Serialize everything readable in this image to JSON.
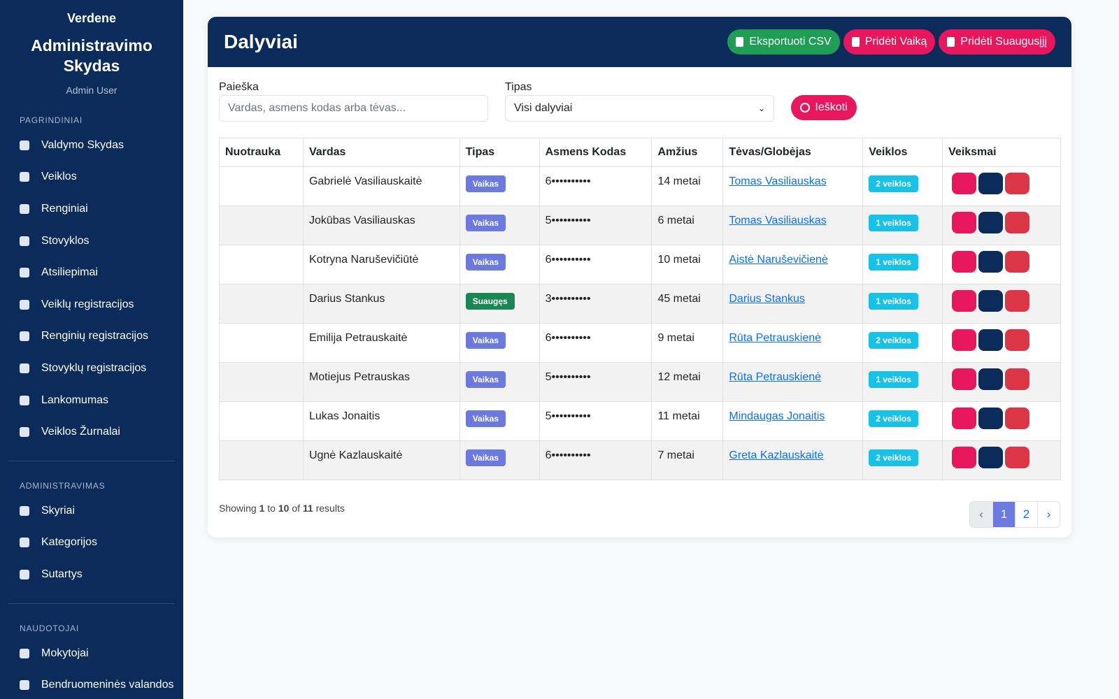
{
  "sidebar": {
    "brand": "Verdene",
    "title": "Administravimo Skydas",
    "user": "Admin User",
    "sections": [
      {
        "heading": "PAGRINDINIAI",
        "items": [
          "Valdymo Skydas",
          "Veiklos",
          "Renginiai",
          "Stovyklos",
          "Atsiliepimai",
          "Veiklų registracijos",
          "Renginių registracijos",
          "Stovyklų registracijos",
          "Lankomumas",
          "Veiklos Žurnalai"
        ]
      },
      {
        "heading": "ADMINISTRAVIMAS",
        "items": [
          "Skyriai",
          "Kategorijos",
          "Sutartys"
        ]
      },
      {
        "heading": "NAUDOTOJAI",
        "items": [
          "Mokytojai",
          "Bendruomeninės valandos"
        ]
      }
    ]
  },
  "header": {
    "title": "Dalyviai",
    "buttons": [
      "Eksportuoti CSV",
      "Pridėti Vaiką",
      "Pridėti Suaugusįjį"
    ]
  },
  "filters": {
    "search_label": "Paieška",
    "search_placeholder": "Vardas, asmens kodas arba tėvas...",
    "type_label": "Tipas",
    "type_value": "Visi dalyviai",
    "submit": "Ieškoti"
  },
  "table": {
    "columns": [
      "Nuotrauka",
      "Vardas",
      "Tipas",
      "Asmens Kodas",
      "Amžius",
      "Tėvas/Globėjas",
      "Veiklos",
      "Veiksmai"
    ],
    "rows": [
      {
        "name": "Gabrielė Vasiliauskaitė",
        "type": "Vaikas",
        "code": "6••••••••••",
        "age": "14 metai",
        "parent": "Tomas Vasiliauskas",
        "activities": "2 veiklos"
      },
      {
        "name": "Jokūbas Vasiliauskas",
        "type": "Vaikas",
        "code": "5••••••••••",
        "age": "6 metai",
        "parent": "Tomas Vasiliauskas",
        "activities": "1 veiklos"
      },
      {
        "name": "Kotryna Naruševičiūtė",
        "type": "Vaikas",
        "code": "6••••••••••",
        "age": "10 metai",
        "parent": "Aistė Naruševičienė",
        "activities": "1 veiklos"
      },
      {
        "name": "Darius Stankus",
        "type": "Suaugęs",
        "code": "3••••••••••",
        "age": "45 metai",
        "parent": "Darius Stankus",
        "activities": "1 veiklos"
      },
      {
        "name": "Emilija Petrauskaitė",
        "type": "Vaikas",
        "code": "6••••••••••",
        "age": "9 metai",
        "parent": "Rūta Petrauskienė",
        "activities": "2 veiklos"
      },
      {
        "name": "Motiejus Petrauskas",
        "type": "Vaikas",
        "code": "5••••••••••",
        "age": "12 metai",
        "parent": "Rūta Petrauskienė",
        "activities": "1 veiklos"
      },
      {
        "name": "Lukas Jonaitis",
        "type": "Vaikas",
        "code": "5••••••••••",
        "age": "11 metai",
        "parent": "Mindaugas Jonaitis",
        "activities": "2 veiklos"
      },
      {
        "name": "Ugnė Kazlauskaitė",
        "type": "Vaikas",
        "code": "6••••••••••",
        "age": "7 metai",
        "parent": "Greta Kazlauskaitė",
        "activities": "2 veiklos"
      }
    ]
  },
  "pagination": {
    "summary": [
      "Showing",
      1,
      "to",
      10,
      "of",
      11,
      "results"
    ],
    "prev": "‹",
    "pages": [
      1,
      2
    ],
    "next": "›"
  }
}
